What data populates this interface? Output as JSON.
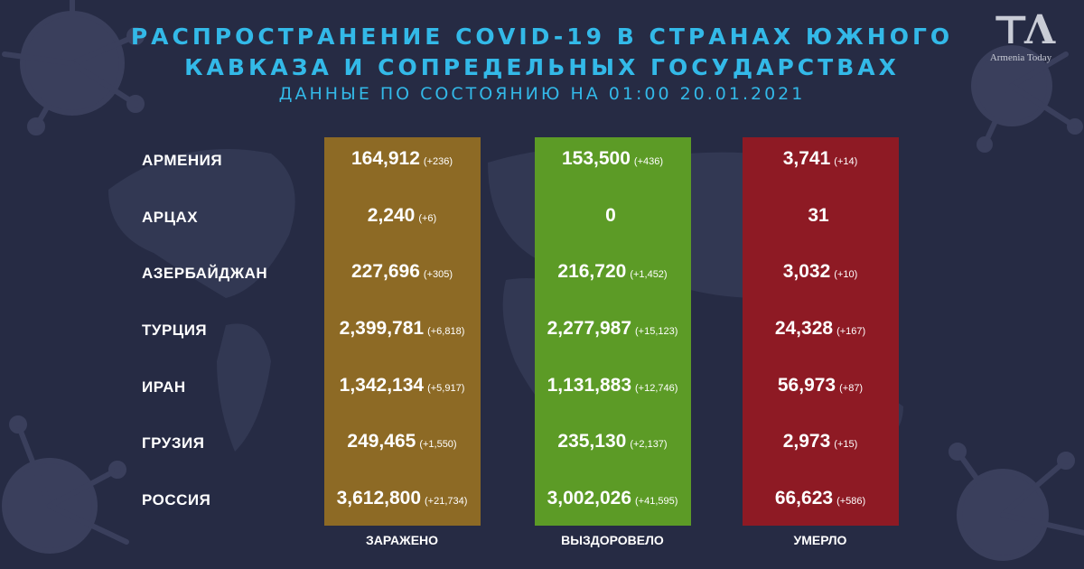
{
  "title_line1": "РАСПРОСТРАНЕНИЕ COVID-19 В СТРАНАХ ЮЖНОГО",
  "title_line2": "КАВКАЗА И СОПРЕДЕЛЬНЫХ ГОСУДАРСТВАХ",
  "subtitle": "ДАННЫЕ ПО СОСТОЯНИЮ НА 01:00  20.01.2021",
  "logo_text": "Armenia Today",
  "columns": {
    "infected": "ЗАРАЖЕНО",
    "recovered": "ВЫЗДОРОВЕЛО",
    "deaths": "УМЕРЛО"
  },
  "colors": {
    "background": "#262b44",
    "title": "#33b9e8",
    "infected": "#8d6a25",
    "recovered": "#5c9b26",
    "deaths": "#8e1a24"
  },
  "rows": [
    {
      "country": "АРМЕНИЯ",
      "infected": "164,912",
      "infected_delta": "(+236)",
      "recovered": "153,500",
      "recovered_delta": "(+436)",
      "deaths": "3,741",
      "deaths_delta": "(+14)"
    },
    {
      "country": "АРЦАХ",
      "infected": "2,240",
      "infected_delta": "(+6)",
      "recovered": "0",
      "recovered_delta": "",
      "deaths": "31",
      "deaths_delta": ""
    },
    {
      "country": "АЗЕРБАЙДЖАН",
      "infected": "227,696",
      "infected_delta": "(+305)",
      "recovered": "216,720",
      "recovered_delta": "(+1,452)",
      "deaths": "3,032",
      "deaths_delta": "(+10)"
    },
    {
      "country": "ТУРЦИЯ",
      "infected": "2,399,781",
      "infected_delta": "(+6,818)",
      "recovered": "2,277,987",
      "recovered_delta": "(+15,123)",
      "deaths": "24,328",
      "deaths_delta": "(+167)"
    },
    {
      "country": "ИРАН",
      "infected": "1,342,134",
      "infected_delta": "(+5,917)",
      "recovered": "1,131,883",
      "recovered_delta": "(+12,746)",
      "deaths": "56,973",
      "deaths_delta": "(+87)"
    },
    {
      "country": "ГРУЗИЯ",
      "infected": "249,465",
      "infected_delta": "(+1,550)",
      "recovered": "235,130",
      "recovered_delta": "(+2,137)",
      "deaths": "2,973",
      "deaths_delta": "(+15)"
    },
    {
      "country": "РОССИЯ",
      "infected": "3,612,800",
      "infected_delta": "(+21,734)",
      "recovered": "3,002,026",
      "recovered_delta": "(+41,595)",
      "deaths": "66,623",
      "deaths_delta": "(+586)"
    }
  ]
}
